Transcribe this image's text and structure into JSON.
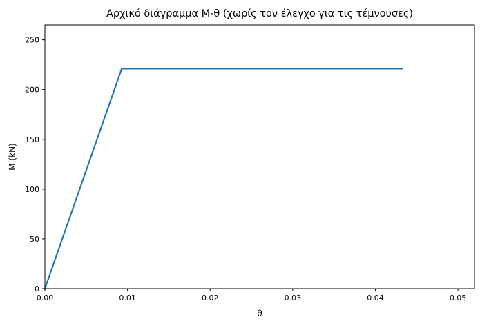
{
  "chart_data": {
    "type": "line",
    "title": "Αρχικό διάγραμμα M-θ (χωρίς τον έλεγχο για τις τέμνουσες)",
    "xlabel": "θ",
    "ylabel": "M (kN)",
    "xlim": [
      0,
      0.052
    ],
    "ylim": [
      0,
      265
    ],
    "xticks": [
      0.0,
      0.01,
      0.02,
      0.03,
      0.04,
      0.05
    ],
    "xtick_labels": [
      "0.00",
      "0.01",
      "0.02",
      "0.03",
      "0.04",
      "0.05"
    ],
    "yticks": [
      0,
      50,
      100,
      150,
      200,
      250
    ],
    "ytick_labels": [
      "0",
      "50",
      "100",
      "150",
      "200",
      "250"
    ],
    "grid": false,
    "legend": "none",
    "series": [
      {
        "color": "#1f77b4",
        "x": [
          0.0,
          0.0093,
          0.0433
        ],
        "y": [
          0,
          221,
          221
        ]
      }
    ]
  }
}
